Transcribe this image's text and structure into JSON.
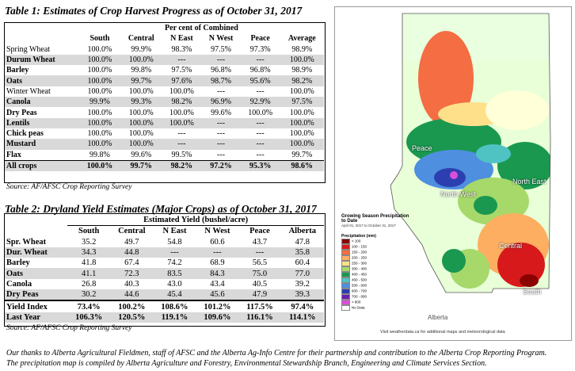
{
  "table1": {
    "title": "Table 1: Estimates of Crop Harvest Progress as of October 31, 2017",
    "group_header": "Per cent of Combined",
    "columns": [
      "South",
      "Central",
      "N East",
      "N West",
      "Peace",
      "Average"
    ],
    "rows": [
      {
        "crop": "Spring Wheat",
        "values": [
          "100.0%",
          "99.9%",
          "98.3%",
          "97.5%",
          "97.3%",
          "98.9%"
        ]
      },
      {
        "crop": "Durum Wheat",
        "values": [
          "100.0%",
          "100.0%",
          "---",
          "---",
          "---",
          "100.0%"
        ]
      },
      {
        "crop": "Barley",
        "values": [
          "100.0%",
          "99.8%",
          "97.5%",
          "96.8%",
          "96.8%",
          "98.9%"
        ]
      },
      {
        "crop": "Oats",
        "values": [
          "100.0%",
          "99.7%",
          "97.6%",
          "98.7%",
          "95.6%",
          "98.2%"
        ]
      },
      {
        "crop": "Winter Wheat",
        "values": [
          "100.0%",
          "100.0%",
          "100.0%",
          "---",
          "---",
          "100.0%"
        ]
      },
      {
        "crop": "Canola",
        "values": [
          "99.9%",
          "99.3%",
          "98.2%",
          "96.9%",
          "92.9%",
          "97.5%"
        ]
      },
      {
        "crop": "Dry Peas",
        "values": [
          "100.0%",
          "100.0%",
          "100.0%",
          "99.6%",
          "100.0%",
          "100.0%"
        ]
      },
      {
        "crop": "Lentils",
        "values": [
          "100.0%",
          "100.0%",
          "100.0%",
          "---",
          "---",
          "100.0%"
        ]
      },
      {
        "crop": "Chick peas",
        "values": [
          "100.0%",
          "100.0%",
          "---",
          "---",
          "---",
          "100.0%"
        ]
      },
      {
        "crop": "Mustard",
        "values": [
          "100.0%",
          "100.0%",
          "---",
          "---",
          "---",
          "100.0%"
        ]
      },
      {
        "crop": "Flax",
        "values": [
          "99.8%",
          "99.6%",
          "99.5%",
          "---",
          "---",
          "99.7%"
        ]
      },
      {
        "crop": "All crops",
        "values": [
          "100.0%",
          "99.7%",
          "98.2%",
          "97.2%",
          "95.3%",
          "98.6%"
        ]
      }
    ],
    "source": "Source: AF/AFSC Crop Reporting Survey"
  },
  "table2": {
    "title": "Table 2: Dryland Yield Estimates (Major Crops) as of October 31, 2017",
    "group_header": "Estimated Yield (bushel/acre)",
    "columns": [
      "South",
      "Central",
      "N East",
      "N West",
      "Peace",
      "Alberta"
    ],
    "rows": [
      {
        "crop": "Spr. Wheat",
        "values": [
          "35.2",
          "49.7",
          "54.8",
          "60.6",
          "43.7",
          "47.8"
        ]
      },
      {
        "crop": "Dur. Wheat",
        "values": [
          "34.3",
          "44.8",
          "---",
          "---",
          "---",
          "35.8"
        ]
      },
      {
        "crop": "Barley",
        "values": [
          "41.8",
          "67.4",
          "74.2",
          "68.9",
          "56.5",
          "60.4"
        ]
      },
      {
        "crop": "Oats",
        "values": [
          "41.1",
          "72.3",
          "83.5",
          "84.3",
          "75.0",
          "77.0"
        ]
      },
      {
        "crop": "Canola",
        "values": [
          "26.8",
          "40.3",
          "43.0",
          "43.4",
          "40.5",
          "39.2"
        ]
      },
      {
        "crop": "Dry Peas",
        "values": [
          "30.2",
          "44.6",
          "45.4",
          "45.6",
          "47.9",
          "39.3"
        ]
      },
      {
        "crop": "Yield Index",
        "values": [
          "73.4%",
          "100.2%",
          "108.6%",
          "101.2%",
          "117.5%",
          "97.4%"
        ]
      },
      {
        "crop": "Last Year",
        "values": [
          "106.3%",
          "120.5%",
          "119.1%",
          "109.6%",
          "116.1%",
          "114.1%"
        ]
      }
    ],
    "source": "Source: AF/AFSC Crop Reporting Survey"
  },
  "footer": {
    "line1": "Our thanks to Alberta Agricultural Fieldmen, staff of AFSC and the Alberta Ag-Info Centre for their partnership and contribution to the Alberta Crop Reporting Program.",
    "line2": "The precipitation map is compiled by Alberta Agriculture and Forestry, Environmental Stewardship Branch, Engineering and Climate Services Section."
  },
  "map": {
    "title": "Growing Season Precipitation to Date",
    "date_range": "April 01, 2017 to October 31, 2017",
    "legend_title": "Precipitation (mm)",
    "legend": [
      {
        "label": "< 100",
        "color": "#8b0000"
      },
      {
        "label": "100 - 150",
        "color": "#d7191c"
      },
      {
        "label": "150 - 200",
        "color": "#f46d43"
      },
      {
        "label": "200 - 250",
        "color": "#fdae61"
      },
      {
        "label": "250 - 300",
        "color": "#fee08b"
      },
      {
        "label": "300 - 400",
        "color": "#a6d96a"
      },
      {
        "label": "400 - 450",
        "color": "#1a9850"
      },
      {
        "label": "450 - 500",
        "color": "#4fc3c3"
      },
      {
        "label": "500 - 600",
        "color": "#4f8fe0"
      },
      {
        "label": "600 - 700",
        "color": "#2c3fb0"
      },
      {
        "label": "700 - 800",
        "color": "#6a1fb0"
      },
      {
        "label": "> 800",
        "color": "#d94fd9"
      },
      {
        "label": "No Data",
        "color": "#ffffff"
      }
    ],
    "regions": [
      "Peace",
      "North West",
      "North East",
      "Central",
      "South"
    ],
    "credit": "Visit weatherdata.ca for additional maps and meteorological data",
    "logo": "Alberta"
  }
}
